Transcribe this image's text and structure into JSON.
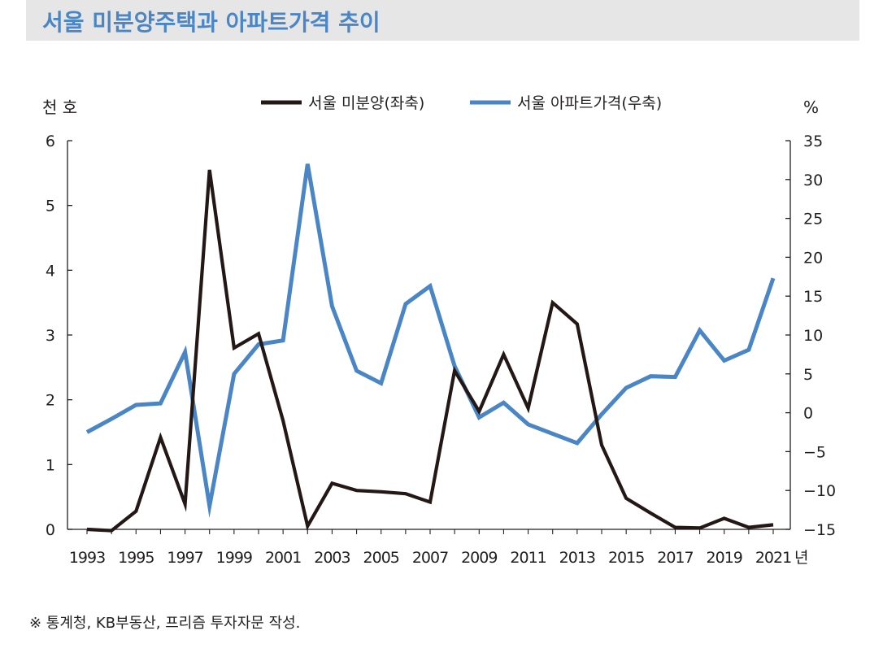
{
  "header": {
    "title": "서울 미분양주택과 아파트가격 추이"
  },
  "footnote": "※ 통계청, KB부동산, 프리즘 투자자문 작성.",
  "colors": {
    "unsold": "#231815",
    "price": "#4a86c5",
    "title": "#4a86c5",
    "band": "#e6e6e6"
  },
  "chart_data": {
    "type": "line",
    "title": "서울 미분양주택과 아파트가격 추이",
    "left_axis": {
      "label": "천 호",
      "min": 0,
      "max": 6,
      "ticks": [
        "0",
        "1",
        "2",
        "3",
        "4",
        "5",
        "6"
      ]
    },
    "right_axis": {
      "label": "%",
      "min": -15,
      "max": 35,
      "ticks": [
        "−15",
        "−10",
        "−5",
        "0",
        "5",
        "10",
        "15",
        "20",
        "25",
        "30",
        "35"
      ]
    },
    "x_unit_label": "년",
    "x_ticks": [
      "1993",
      "1995",
      "1997",
      "1999",
      "2001",
      "2003",
      "2005",
      "2007",
      "2009",
      "2011",
      "2013",
      "2015",
      "2017",
      "2019",
      "2021"
    ],
    "x": [
      1993,
      1994,
      1995,
      1996,
      1997,
      1998,
      1999,
      2000,
      2001,
      2002,
      2003,
      2004,
      2005,
      2006,
      2007,
      2008,
      2009,
      2010,
      2011,
      2012,
      2013,
      2014,
      2015,
      2016,
      2017,
      2018,
      2019,
      2020,
      2021
    ],
    "series": [
      {
        "name": "서울 미분양(좌축)",
        "axis": "left",
        "color": "#231815",
        "values": [
          0.0,
          -0.02,
          0.28,
          1.42,
          0.39,
          5.55,
          2.8,
          3.02,
          1.68,
          0.05,
          0.71,
          0.6,
          0.58,
          0.55,
          0.42,
          2.45,
          1.82,
          2.7,
          1.87,
          3.5,
          3.17,
          1.3,
          0.48,
          0.25,
          0.03,
          0.02,
          0.17,
          0.03,
          0.07
        ]
      },
      {
        "name": "서울 아파트가격(우축)",
        "axis": "right",
        "color": "#4a86c5",
        "values": [
          -2.5,
          -0.8,
          1.0,
          1.2,
          7.8,
          -12.0,
          5.0,
          8.8,
          9.3,
          32.0,
          13.7,
          5.4,
          3.8,
          14.0,
          16.3,
          6.0,
          -0.6,
          1.3,
          -1.5,
          -2.7,
          -3.9,
          -0.2,
          3.2,
          4.7,
          4.6,
          10.6,
          6.7,
          8.1,
          17.3
        ]
      }
    ]
  }
}
